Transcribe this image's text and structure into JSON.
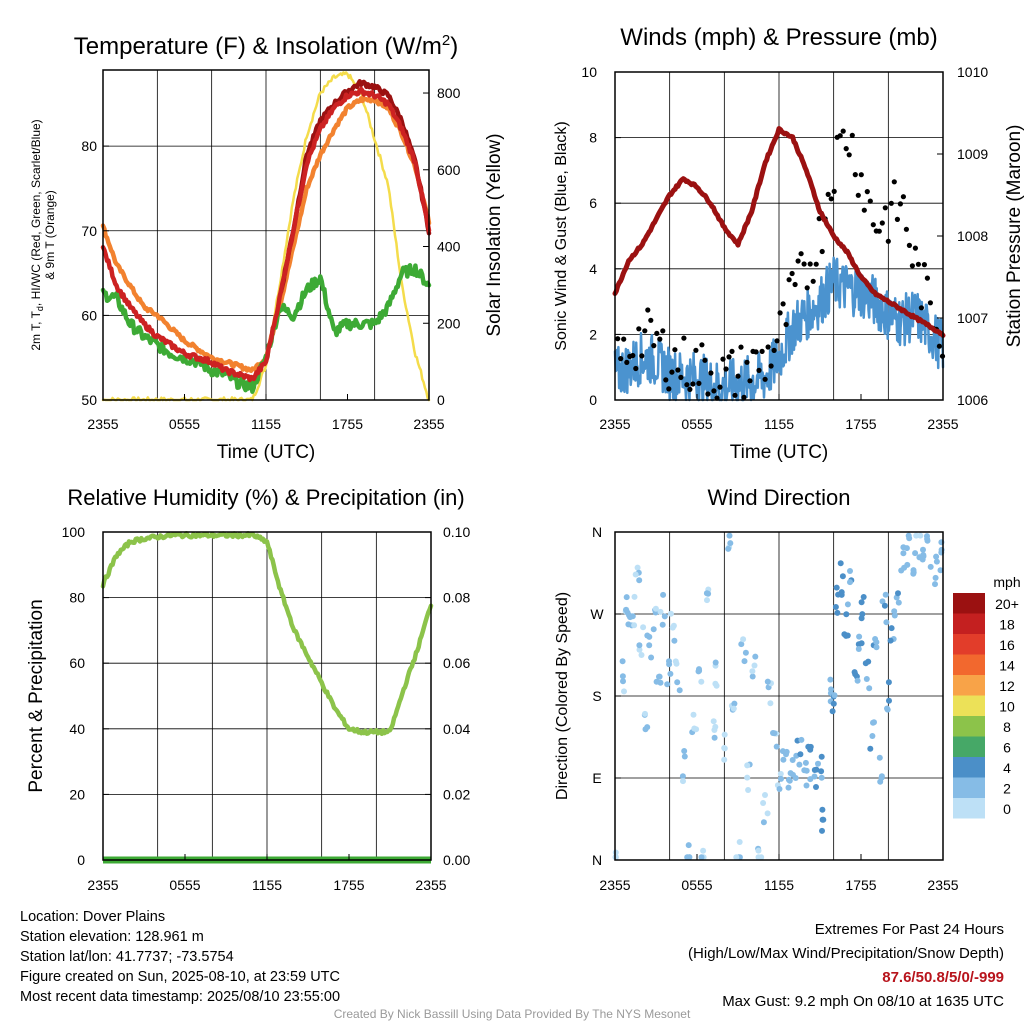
{
  "colors": {
    "temp2m": "#cc2222",
    "dewpoint": "#3daa35",
    "heat_index": "#9b1111",
    "temp9m": "#f2822f",
    "insolation": "#f4dc4b",
    "sonic_wind": "#4b93cf",
    "gust": "#000000",
    "pressure": "#9b1111",
    "rh": "#8cc34a",
    "precip": "#3daa35"
  },
  "time_ticks": [
    "2355",
    "0555",
    "1155",
    "1755",
    "2355"
  ],
  "panels": {
    "temp": {
      "title_main": "Temperature (F) & Insolation (W/m",
      "title_sup": "2",
      "title_end": ")",
      "xlabel": "Time (UTC)",
      "ylabel_line1_a": "2m T, T",
      "ylabel_line1_sub": "d",
      "ylabel_line1_b": ", HI/WC (Red, Green, Scarlet/Blue)",
      "ylabel_line2": "& 9m T (Orange)",
      "right_label": "Solar Insolation (Yellow)",
      "left_ticks": [
        "50",
        "60",
        "70",
        "80"
      ],
      "right_ticks": [
        "0",
        "200",
        "400",
        "600",
        "800"
      ]
    },
    "wind": {
      "title": "Winds (mph) & Pressure (mb)",
      "xlabel": "Time (UTC)",
      "ylabel": "Sonic Wind & Gust (Blue, Black)",
      "right_label": "Station Pressure (Maroon)",
      "left_ticks": [
        "0",
        "2",
        "4",
        "6",
        "8",
        "10"
      ],
      "right_ticks": [
        "1006",
        "1007",
        "1008",
        "1009",
        "1010"
      ]
    },
    "rh": {
      "title": "Relative Humidity (%) & Precipitation (in)",
      "ylabel": "Percent & Precipitation",
      "left_ticks": [
        "0",
        "20",
        "40",
        "60",
        "80",
        "100"
      ],
      "right_ticks": [
        "0.00",
        "0.02",
        "0.04",
        "0.06",
        "0.08",
        "0.10"
      ]
    },
    "dir": {
      "title": "Wind Direction",
      "ylabel": "Direction (Colored By Speed)",
      "left_ticks": [
        "N",
        "E",
        "S",
        "W",
        "N"
      ],
      "legend_title": "mph",
      "legend_labels": [
        "20+",
        "18",
        "16",
        "14",
        "12",
        "10",
        "8",
        "6",
        "4",
        "2",
        "0"
      ],
      "legend_colors": [
        "#9b1111",
        "#c42020",
        "#e23d2a",
        "#f2682e",
        "#f8a348",
        "#ece158",
        "#8cc34a",
        "#46a867",
        "#4b8fc8",
        "#86bce6",
        "#bde0f6"
      ]
    }
  },
  "chart_data": [
    {
      "type": "line",
      "title": "Temperature (F) & Insolation (W/m2)",
      "xlabel": "Time (UTC)",
      "ylabel": "2m T, Td, HI/WC (Red, Green, Scarlet/Blue) & 9m T (Orange)",
      "y2label": "Solar Insolation (Yellow)",
      "x_hours_from_2355": [
        0,
        1,
        2,
        3,
        4,
        5,
        6,
        7,
        8,
        9,
        10,
        11,
        12,
        13,
        14,
        15,
        16,
        17,
        18,
        19,
        20,
        21,
        22,
        23,
        24
      ],
      "ylim": [
        50,
        89
      ],
      "y2lim": [
        0,
        860
      ],
      "series": [
        {
          "name": "2m T",
          "values": [
            68,
            63.5,
            61,
            59,
            57.5,
            56.5,
            55.5,
            55,
            54.5,
            53.5,
            53,
            52.5,
            54.5,
            62,
            70,
            78,
            82,
            84.5,
            86,
            86.5,
            86,
            85,
            82,
            78,
            70
          ]
        },
        {
          "name": "Td",
          "values": [
            62.5,
            62,
            59,
            57.5,
            56.5,
            55.5,
            55,
            54.5,
            53.5,
            53,
            52,
            51.5,
            55,
            61,
            60,
            63,
            64.5,
            58,
            59,
            59,
            59,
            61,
            65,
            65.5,
            63.5
          ]
        },
        {
          "name": "9m T",
          "values": [
            70.5,
            66,
            63.5,
            61,
            60,
            58.5,
            57,
            56,
            55,
            54.5,
            54,
            53.5,
            55,
            61,
            68,
            75,
            79,
            82,
            84.5,
            85.5,
            85.5,
            84.5,
            81.5,
            77.5,
            71
          ]
        },
        {
          "name": "HI",
          "values": [
            null,
            null,
            null,
            null,
            null,
            null,
            null,
            null,
            null,
            null,
            null,
            null,
            null,
            62,
            70,
            79,
            83,
            85,
            86.5,
            87.5,
            87,
            86,
            83,
            78,
            70
          ]
        },
        {
          "name": "Solar Insolation",
          "axis": "right",
          "values": [
            0,
            0,
            0,
            0,
            0,
            0,
            0,
            0,
            0,
            0,
            0,
            0,
            90,
            300,
            520,
            690,
            800,
            840,
            850,
            800,
            680,
            560,
            300,
            120,
            0
          ]
        }
      ]
    },
    {
      "type": "line",
      "title": "Winds (mph) & Pressure (mb)",
      "xlabel": "Time (UTC)",
      "ylabel": "Sonic Wind & Gust (Blue, Black)",
      "y2label": "Station Pressure (Maroon)",
      "x_hours_from_2355": [
        0,
        1,
        2,
        3,
        4,
        5,
        6,
        7,
        8,
        9,
        10,
        11,
        12,
        13,
        14,
        15,
        16,
        17,
        18,
        19,
        20,
        21,
        22,
        23,
        24
      ],
      "ylim": [
        0,
        10
      ],
      "y2lim": [
        1006,
        1010
      ],
      "series": [
        {
          "name": "Sonic Wind",
          "values": [
            0.8,
            1.0,
            1.3,
            1.2,
            0.8,
            0.7,
            0.7,
            0.5,
            0.4,
            0.5,
            0.6,
            0.7,
            1.3,
            2.2,
            2.6,
            3.0,
            3.6,
            3.4,
            3.3,
            3.0,
            2.6,
            2.4,
            2.6,
            2.1,
            1.6
          ]
        },
        {
          "name": "Gust",
          "values": [
            1.0,
            1.6,
            1.9,
            1.8,
            1.2,
            1.1,
            1.0,
            0.9,
            0.7,
            0.8,
            1.0,
            1.2,
            1.9,
            3.2,
            3.9,
            5.0,
            7.2,
            8.2,
            6.8,
            5.4,
            5.6,
            6.0,
            4.0,
            2.9,
            2.1
          ]
        },
        {
          "name": "Station Pressure",
          "axis": "right",
          "values": [
            1007.3,
            1007.7,
            1007.9,
            1008.2,
            1008.5,
            1008.7,
            1008.6,
            1008.4,
            1008.1,
            1007.9,
            1008.3,
            1008.9,
            1009.3,
            1009.2,
            1008.8,
            1008.3,
            1008.0,
            1007.8,
            1007.5,
            1007.3,
            1007.2,
            1007.1,
            1007.0,
            1006.9,
            1006.8
          ]
        }
      ]
    },
    {
      "type": "line",
      "title": "Relative Humidity (%) & Precipitation (in)",
      "ylabel": "Percent & Precipitation",
      "x_hours_from_2355": [
        0,
        1,
        2,
        3,
        4,
        5,
        6,
        7,
        8,
        9,
        10,
        11,
        12,
        13,
        14,
        15,
        16,
        17,
        18,
        19,
        20,
        21,
        22,
        23,
        24
      ],
      "ylim": [
        0,
        100
      ],
      "y2lim": [
        0,
        0.1
      ],
      "series": [
        {
          "name": "RH",
          "values": [
            84,
            93,
            97,
            98,
            98.5,
            99,
            99,
            99,
            99,
            99,
            99,
            99,
            97,
            82,
            70,
            62,
            54,
            46,
            40,
            39,
            39,
            39,
            52,
            64,
            78
          ]
        },
        {
          "name": "Precipitation",
          "axis": "right",
          "values": [
            0,
            0,
            0,
            0,
            0,
            0,
            0,
            0,
            0,
            0,
            0,
            0,
            0,
            0,
            0,
            0,
            0,
            0,
            0,
            0,
            0,
            0,
            0,
            0,
            0
          ]
        }
      ]
    },
    {
      "type": "scatter",
      "title": "Wind Direction",
      "ylabel": "Direction (Colored By Speed)",
      "ylim_degrees": [
        0,
        360
      ],
      "color_scale": "mph",
      "points": [
        {
          "t": 0.1,
          "deg": 5,
          "mph": 1
        },
        {
          "t": 0.5,
          "deg": 200,
          "mph": 1
        },
        {
          "t": 0.8,
          "deg": 290,
          "mph": 1
        },
        {
          "t": 1.0,
          "deg": 255,
          "mph": 2
        },
        {
          "t": 1.3,
          "deg": 270,
          "mph": 1
        },
        {
          "t": 1.6,
          "deg": 320,
          "mph": 1
        },
        {
          "t": 1.9,
          "deg": 240,
          "mph": 1
        },
        {
          "t": 2.2,
          "deg": 160,
          "mph": 1
        },
        {
          "t": 2.5,
          "deg": 230,
          "mph": 2
        },
        {
          "t": 2.9,
          "deg": 270,
          "mph": 1
        },
        {
          "t": 3.2,
          "deg": 195,
          "mph": 2
        },
        {
          "t": 3.5,
          "deg": 275,
          "mph": 1
        },
        {
          "t": 3.9,
          "deg": 210,
          "mph": 1
        },
        {
          "t": 4.2,
          "deg": 255,
          "mph": 1
        },
        {
          "t": 4.6,
          "deg": 200,
          "mph": 1
        },
        {
          "t": 5.0,
          "deg": 100,
          "mph": 1
        },
        {
          "t": 5.4,
          "deg": 5,
          "mph": 1
        },
        {
          "t": 5.8,
          "deg": 160,
          "mph": 1
        },
        {
          "t": 6.2,
          "deg": 190,
          "mph": 1
        },
        {
          "t": 6.5,
          "deg": 5,
          "mph": 1
        },
        {
          "t": 6.8,
          "deg": 285,
          "mph": 1
        },
        {
          "t": 7.2,
          "deg": 140,
          "mph": 1
        },
        {
          "t": 7.5,
          "deg": 210,
          "mph": 1
        },
        {
          "t": 7.9,
          "deg": 120,
          "mph": 1
        },
        {
          "t": 8.3,
          "deg": 350,
          "mph": 1
        },
        {
          "t": 8.6,
          "deg": 170,
          "mph": 1
        },
        {
          "t": 9.0,
          "deg": 5,
          "mph": 1
        },
        {
          "t": 9.4,
          "deg": 230,
          "mph": 1
        },
        {
          "t": 9.8,
          "deg": 95,
          "mph": 1
        },
        {
          "t": 10.2,
          "deg": 215,
          "mph": 1
        },
        {
          "t": 10.6,
          "deg": 5,
          "mph": 1
        },
        {
          "t": 11.0,
          "deg": 60,
          "mph": 1
        },
        {
          "t": 11.3,
          "deg": 185,
          "mph": 1
        },
        {
          "t": 11.7,
          "deg": 130,
          "mph": 1
        },
        {
          "t": 12.0,
          "deg": 95,
          "mph": 1
        },
        {
          "t": 12.4,
          "deg": 110,
          "mph": 2
        },
        {
          "t": 12.8,
          "deg": 80,
          "mph": 2
        },
        {
          "t": 13.1,
          "deg": 100,
          "mph": 2
        },
        {
          "t": 13.5,
          "deg": 115,
          "mph": 3
        },
        {
          "t": 13.9,
          "deg": 90,
          "mph": 2
        },
        {
          "t": 14.2,
          "deg": 105,
          "mph": 3
        },
        {
          "t": 14.6,
          "deg": 80,
          "mph": 3
        },
        {
          "t": 15.0,
          "deg": 110,
          "mph": 3
        },
        {
          "t": 15.3,
          "deg": 40,
          "mph": 4
        },
        {
          "t": 15.7,
          "deg": 190,
          "mph": 2
        },
        {
          "t": 16.0,
          "deg": 170,
          "mph": 3
        },
        {
          "t": 16.3,
          "deg": 280,
          "mph": 4
        },
        {
          "t": 16.6,
          "deg": 310,
          "mph": 4
        },
        {
          "t": 16.9,
          "deg": 260,
          "mph": 4
        },
        {
          "t": 17.2,
          "deg": 300,
          "mph": 3
        },
        {
          "t": 17.6,
          "deg": 210,
          "mph": 3
        },
        {
          "t": 17.9,
          "deg": 240,
          "mph": 3
        },
        {
          "t": 18.2,
          "deg": 280,
          "mph": 4
        },
        {
          "t": 18.5,
          "deg": 200,
          "mph": 3
        },
        {
          "t": 18.8,
          "deg": 140,
          "mph": 3
        },
        {
          "t": 19.1,
          "deg": 250,
          "mph": 3
        },
        {
          "t": 19.4,
          "deg": 100,
          "mph": 2
        },
        {
          "t": 19.7,
          "deg": 280,
          "mph": 3
        },
        {
          "t": 20.0,
          "deg": 180,
          "mph": 3
        },
        {
          "t": 20.3,
          "deg": 260,
          "mph": 3
        },
        {
          "t": 20.6,
          "deg": 290,
          "mph": 3
        },
        {
          "t": 21.0,
          "deg": 330,
          "mph": 2
        },
        {
          "t": 21.4,
          "deg": 340,
          "mph": 2
        },
        {
          "t": 21.8,
          "deg": 325,
          "mph": 2
        },
        {
          "t": 22.2,
          "deg": 345,
          "mph": 1
        },
        {
          "t": 22.6,
          "deg": 330,
          "mph": 2
        },
        {
          "t": 23.0,
          "deg": 340,
          "mph": 2
        },
        {
          "t": 23.4,
          "deg": 320,
          "mph": 2
        },
        {
          "t": 23.8,
          "deg": 335,
          "mph": 2
        }
      ]
    }
  ],
  "info": {
    "location": "Location: Dover Plains",
    "elevation": "Station elevation: 128.961 m",
    "latlon": "Station lat/lon: 41.7737; -73.5754",
    "created": "Figure created on Sun, 2025-08-10, at 23:59 UTC",
    "recent": "Most recent data timestamp: 2025/08/10 23:55:00"
  },
  "extremes": {
    "title": "Extremes For Past 24 Hours",
    "subtitle": "(High/Low/Max Wind/Precipitation/Snow Depth)",
    "values": "87.6/50.8/5/0/-999",
    "gust": "Max Gust: 9.2 mph On 08/10 at 1635 UTC"
  },
  "credit": "Created By Nick Bassill Using Data Provided By The NYS Mesonet"
}
